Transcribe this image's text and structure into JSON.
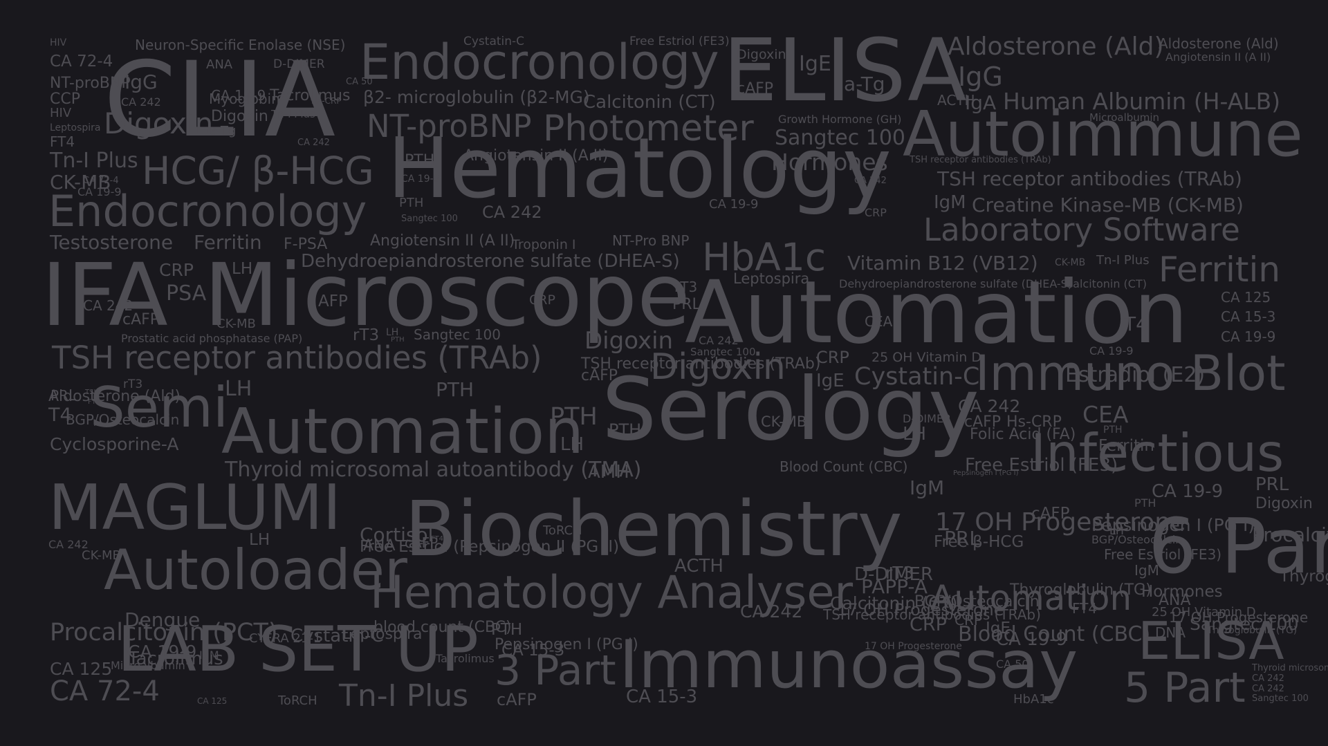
{
  "background": "#19181d",
  "text_color": "#4e4d53",
  "words": [
    "CLIA",
    "ELISA",
    "Endocronology",
    "Hematology",
    "Autoimmune",
    "Microscope",
    "IFA",
    "Automation",
    "Serology",
    "Immuno Blot",
    "Semi",
    "Automation",
    "MAGLUMI",
    "Biochemistry",
    "6 Part",
    "Infectious",
    "Autoloader",
    "Hematology Analyser",
    "LAB SET UP",
    "Immunoassay",
    "ELISA",
    "5 Part",
    "3 Part",
    "Photometer",
    "NT-proBNP",
    "HCG/ β-HCG",
    "Endocronology",
    "HbA1c",
    "Laboratory Software",
    "TSH receptor antibodies (TRAb)",
    "Ferritin",
    "Digoxin",
    "Automation",
    "Aldosterone (Ald)",
    "Human Albumin (H-ALB)",
    "Neuron-Specific Enolase (NSE)",
    "Cystatin-C",
    "Free Estriol (FE3)",
    "Aldosterone (Ald)",
    "Angiotensin II (A II)",
    "IgG",
    "β2- microglobulin (β2-MG)",
    "IgA",
    "Microalbumin",
    "Growth Hormone (GH)",
    "Sangtec 100",
    "Hormones",
    "Calcitonin (CT)",
    "ACTH",
    "a-Tg",
    "IgE",
    "Digoxin",
    "cAFP",
    "CA 72-4",
    "CA 19-9",
    "Angiotensin II (A II)",
    "PTH",
    "CA 19-9",
    "TSH receptor antibodies (TRAb)",
    "IgM",
    "Creatine Kinase-MB (CK-MB)",
    "Testosterone",
    "Ferritin",
    "F-PSA",
    "Angiotensin II (A II)",
    "Troponin I",
    "NT-Pro BNP",
    "Dehydroepiandrosterone sulfate (DHEA-S)",
    "Vitamin B12 (VB12)",
    "CK-MB",
    "Tn-I Plus",
    "Dehydroepiandrosterone sulfate (DHEA-S)",
    "Calcitonin (CT)",
    "CA 125",
    "CA 15-3",
    "CA 19-9",
    "T4",
    "CEA",
    "Leptospira",
    "rT3",
    "PRL",
    "CA 242",
    "CRP",
    "AFP",
    "PSA",
    "CRP",
    "LH",
    "CA 242",
    "cAFP",
    "CK-MB",
    "Prostatic acid phosphatase (PAP)",
    "rT3",
    "LH",
    "PTH",
    "Sangtec 100",
    "Digoxin",
    "Sangtec 100",
    "CRP",
    "25 OH Vitamin D",
    "CA 19-9",
    "TSH receptor antibodies (TRAb)",
    "cAFP",
    "IgE",
    "Cystatin-C",
    "Estradiol (E2)",
    "Aldosterone (Ald)",
    "BGP/Osteocalcin",
    "rT3",
    "LH",
    "PTH",
    "PRL",
    "TSH",
    "FT4",
    "T4",
    "PTH",
    "LH",
    "PTH",
    "CK-MB",
    "D-DIMER",
    "CA 242",
    "cAFP",
    "Folic Acid (FA)",
    "Hs-CRP",
    "LH",
    "PTH",
    "CEA",
    "Ferritin",
    "Free Estriol (FE3)",
    "Pepsinogen I (PG I)",
    "Cyclosporine-A",
    "Thyroid microsomal autoantibody (TMA)",
    "AMH",
    "Blood Count (CBC)",
    "IgM",
    "CA 19-9",
    "PRL",
    "Digoxin",
    "17 OH Progesterone",
    "cAFP",
    "Pepsinogen I (PG I)",
    "BGP/Osteocalcin",
    "LH",
    "Free Estriol (FE3)",
    "Procalcitonin (PCT)",
    "PTH",
    "ToRCH",
    "Cortisol",
    "ANA",
    "cAFP",
    "FT4",
    "CA 242",
    "LH",
    "PRL",
    "rT3",
    "Free Estriol (Pepsinogen II (PG II)",
    "Free β-HCG",
    "ACTH",
    "D-DIMER",
    "IgM",
    "Thyroglobulin (TG)",
    "PAPP-A",
    "17 OH Progesterone",
    "Calcitonin (CT)",
    "25 OH Vitamin D",
    "TSH receptor antibodies (TRAb)",
    "BGP/Osteocalcin",
    "Thyroglobulin (TG)",
    "Hormones",
    "ANA",
    "17 OH Progesterone",
    "FT4",
    "Sangtec 100",
    "DNA",
    "CRP",
    "Thyroglobulin (TG)",
    "Blood Count (CBC)",
    "Procalcitonin (PCT)",
    "Dengue",
    "IgE",
    "CA 242",
    "CRP",
    "PTH",
    "blood count (CBC)",
    "Tacrolimus",
    "IgM",
    "17 OH Progesterone",
    "CA 125",
    "CA 15-3",
    "CA 19-9",
    "CA 50",
    "Tacrolimus",
    "Pepsinogen I (PG I)",
    "Cystatin-C",
    "Leptospira",
    "Microalbumin",
    "Thyroid microsomal autoantibody (TMA)",
    "CA 242",
    "CA 242",
    "Sangtec 100",
    "CA 72-4",
    "CA 125",
    "ToRCH",
    "Tn-I Plus",
    "cAFP",
    "CA 15-3",
    "HbA1c",
    "CK-MB",
    "CYFRA 21-1",
    "CA 19-9",
    "HIV",
    "ANA",
    "D-DIMER",
    "NT-proBNP",
    "IgG",
    "CA 50",
    "CCP",
    "CA 242",
    "Myoglobin",
    "Tacrolimus",
    "Hs-CRP",
    "HIV",
    "Leptospira",
    "Digoxin",
    "Digoxin",
    "Tn-I Plus",
    "a-Tg",
    "FT4",
    "CA 242",
    "Tn-I Plus",
    "CK-MB",
    "CA 72-4",
    "CA 19-9",
    "PTH",
    "Sangtec 100",
    "CA 242",
    "CA 19-9",
    "CRP",
    "CA 242",
    "TSH receptor antibodies (TRAb)"
  ]
}
